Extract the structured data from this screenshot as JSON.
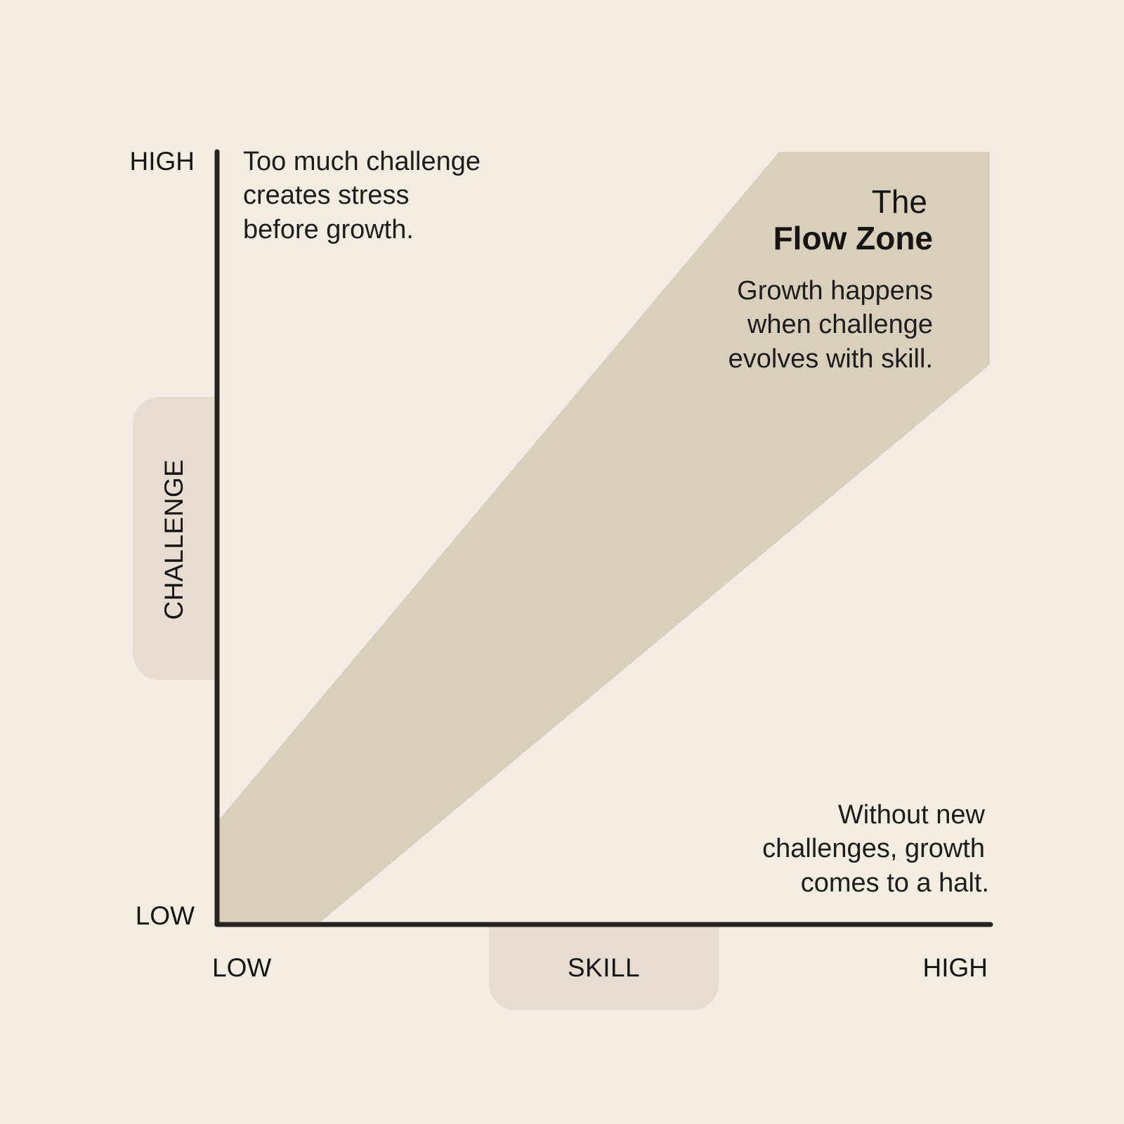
{
  "colors": {
    "background": "#f1ede5",
    "flow_band": "#d7d0bd",
    "axis_tab": "#e4ddd0",
    "axis_line": "#262421"
  },
  "axes": {
    "y": {
      "label": "CHALLENGE",
      "high": "HIGH",
      "low": "LOW"
    },
    "x": {
      "label": "SKILL",
      "low": "LOW",
      "high": "HIGH"
    }
  },
  "flow_zone": {
    "title_line1": "The",
    "title_line2": "Flow Zone",
    "description": [
      "Growth happens",
      "when challenge",
      "evolves with skill."
    ]
  },
  "notes": {
    "top_left": [
      "Too much challenge",
      "creates stress",
      "before growth."
    ],
    "bottom_right": [
      "Without new",
      "challenges, growth",
      "comes to a halt."
    ]
  }
}
